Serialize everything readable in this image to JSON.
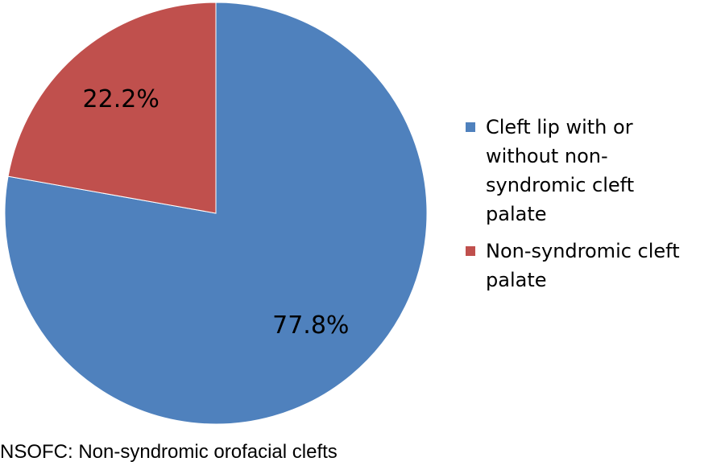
{
  "chart_data": {
    "type": "pie",
    "categories": [
      "Cleft lip with or without non-syndromic cleft palate",
      "Non-syndromic cleft palate"
    ],
    "values": [
      77.8,
      22.2
    ],
    "value_labels": [
      "77.8%",
      "22.2%"
    ],
    "colors": [
      "#4f81bd",
      "#c0504d"
    ],
    "legend": "right",
    "note": "NSOFC: Non-syndromic orofacial clefts"
  }
}
